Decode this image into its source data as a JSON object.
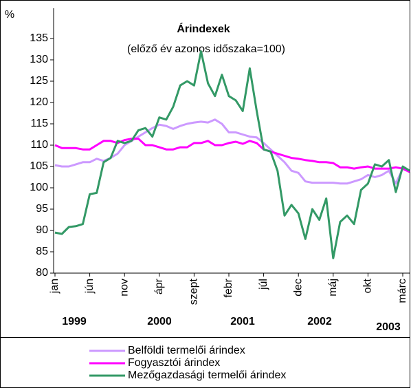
{
  "chart_data": {
    "type": "line",
    "title": "Árindexek",
    "subtitle": "(előző év azonos időszaka=100)",
    "y_label": "%",
    "categories": [
      "jan",
      null,
      null,
      null,
      null,
      "jún",
      null,
      null,
      null,
      null,
      "nov",
      null,
      null,
      null,
      null,
      "ápr",
      null,
      null,
      null,
      null,
      "szept",
      null,
      null,
      null,
      null,
      "febr",
      null,
      null,
      null,
      null,
      "júl",
      null,
      null,
      null,
      null,
      "dec",
      null,
      null,
      null,
      null,
      "máj",
      null,
      null,
      null,
      null,
      "okt",
      null,
      null,
      null,
      null,
      "márc",
      null
    ],
    "annotations": [
      "1999",
      "2000",
      "2001",
      "2002",
      "2003"
    ],
    "ylim": [
      80,
      135
    ],
    "yticks": [
      80,
      85,
      90,
      95,
      100,
      105,
      110,
      115,
      120,
      125,
      130,
      135
    ],
    "grid": false,
    "legend": "bottom",
    "series": [
      {
        "name": "Belföldi termelői árindex",
        "color": "#cc99ff",
        "values": [
          105.3,
          105,
          105,
          105.5,
          106,
          106,
          106.8,
          106.3,
          107,
          108,
          110,
          111,
          112,
          113,
          114,
          114.8,
          114.5,
          113.8,
          114.5,
          115,
          115.3,
          115.5,
          115.3,
          116,
          115,
          113,
          113,
          112.5,
          112,
          111.8,
          110.5,
          109,
          107.5,
          106,
          104,
          103.5,
          101.5,
          101.2,
          101.2,
          101.2,
          101.2,
          101,
          101,
          101.5,
          102,
          103,
          102.5,
          103,
          104,
          101,
          104.5,
          104
        ]
      },
      {
        "name": "Fogyasztói árindex",
        "color": "#ff00ff",
        "values": [
          110,
          109.3,
          109.3,
          109.3,
          109,
          109,
          110,
          111,
          111,
          110.5,
          111.2,
          111.5,
          111.5,
          110,
          110,
          109.5,
          109,
          109,
          109.5,
          109.5,
          110.5,
          110.5,
          111,
          110,
          110,
          110.5,
          110.8,
          110.3,
          111,
          110.5,
          109,
          108.5,
          108,
          107.5,
          107,
          106.8,
          106.5,
          106.3,
          106,
          106,
          105.8,
          104.8,
          104.8,
          104.5,
          104.8,
          105,
          104.5,
          104.5,
          104.5,
          104.8,
          104.5,
          103.7
        ]
      },
      {
        "name": "Mezőgazdasági termelői árindex",
        "color": "#339966",
        "values": [
          89.5,
          89.2,
          90.8,
          91,
          91.5,
          98.5,
          98.8,
          106,
          107,
          111,
          110.5,
          111,
          113.5,
          114,
          112,
          116.5,
          116,
          119,
          124,
          125,
          124,
          132,
          124.5,
          121.5,
          126.5,
          121.5,
          120.5,
          118,
          128,
          118,
          109,
          108.5,
          104,
          93.5,
          96,
          94,
          88,
          95,
          92.5,
          97.5,
          83.5,
          92,
          93.5,
          91.5,
          99.5,
          101,
          105.5,
          105,
          106.5,
          99,
          105,
          104
        ]
      }
    ]
  }
}
